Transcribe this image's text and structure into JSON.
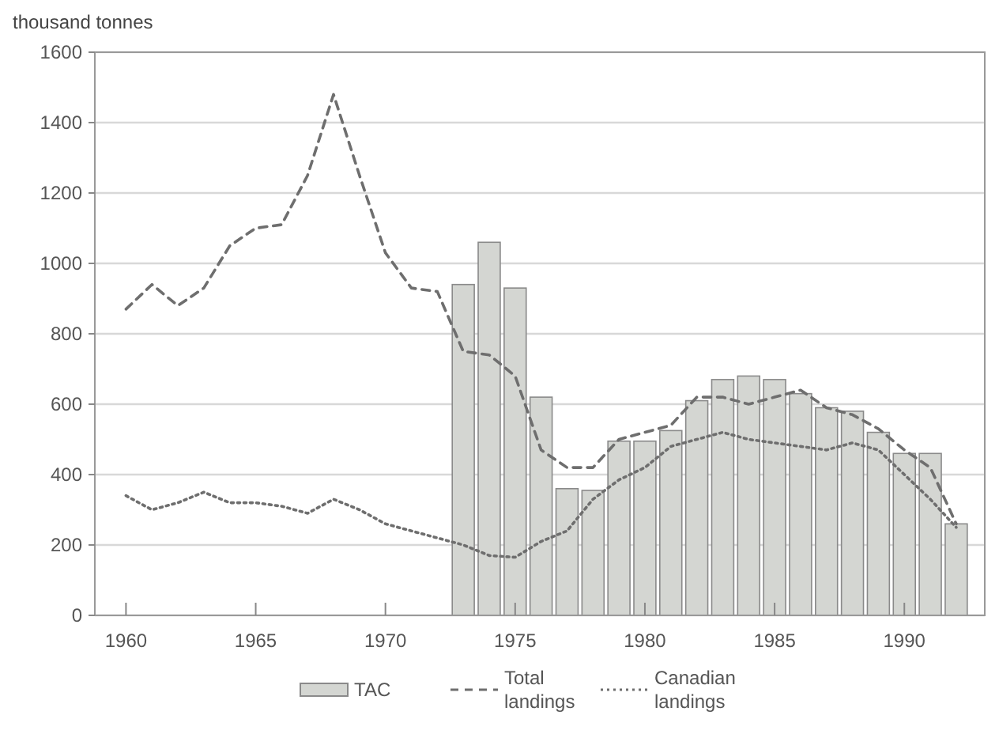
{
  "chart_data": {
    "type": "bar",
    "ylabel": "thousand tonnes",
    "x": [
      1960,
      1961,
      1962,
      1963,
      1964,
      1965,
      1966,
      1967,
      1968,
      1969,
      1970,
      1971,
      1972,
      1973,
      1974,
      1975,
      1976,
      1977,
      1978,
      1979,
      1980,
      1981,
      1982,
      1983,
      1984,
      1985,
      1986,
      1987,
      1988,
      1989,
      1990,
      1991,
      1992
    ],
    "series": [
      {
        "name": "TAC",
        "color": "#d4d6d2",
        "values": [
          null,
          null,
          null,
          null,
          null,
          null,
          null,
          null,
          null,
          null,
          null,
          null,
          null,
          940,
          1060,
          930,
          620,
          360,
          355,
          495,
          495,
          525,
          610,
          670,
          680,
          670,
          630,
          590,
          580,
          520,
          460,
          460,
          260
        ]
      },
      {
        "name": "Total landings",
        "type": "line",
        "line_style": "dashed",
        "color": "#6e6e6e",
        "values": [
          870,
          940,
          880,
          930,
          1050,
          1100,
          1110,
          1250,
          1480,
          1250,
          1030,
          930,
          920,
          750,
          740,
          680,
          470,
          420,
          420,
          500,
          520,
          540,
          620,
          620,
          600,
          620,
          640,
          590,
          570,
          530,
          470,
          420,
          260
        ]
      },
      {
        "name": "Canadian landings",
        "type": "line",
        "line_style": "dotted",
        "color": "#6e6e6e",
        "values": [
          340,
          300,
          320,
          350,
          320,
          320,
          310,
          290,
          330,
          300,
          260,
          240,
          220,
          200,
          170,
          165,
          210,
          240,
          330,
          385,
          420,
          480,
          500,
          520,
          500,
          490,
          480,
          470,
          490,
          470,
          400,
          330,
          250
        ]
      }
    ],
    "xlim": [
      1958.8,
      1993.1
    ],
    "xticks": [
      1960,
      1965,
      1970,
      1975,
      1980,
      1985,
      1990
    ],
    "ylim": [
      0,
      1600
    ],
    "yticks": [
      0,
      200,
      400,
      600,
      800,
      1000,
      1200,
      1400,
      1600
    ],
    "grid": "y",
    "legend": "bottom"
  }
}
